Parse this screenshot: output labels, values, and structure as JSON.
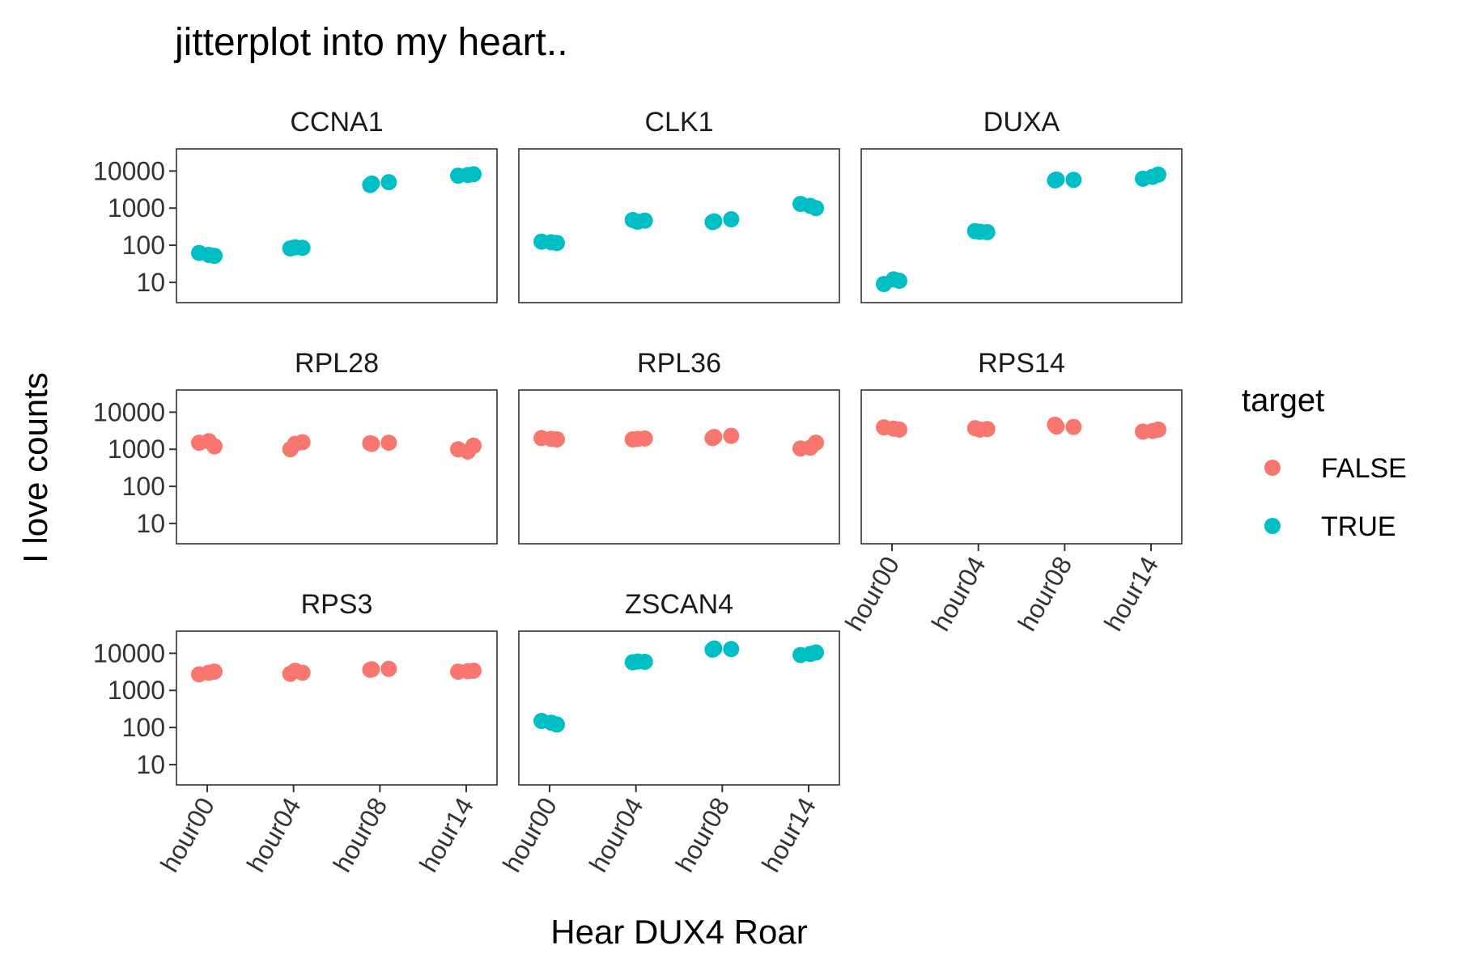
{
  "chart_data": {
    "type": "scatter",
    "title": "jitterplot  into my heart..",
    "xlabel": "Hear DUX4 Roar",
    "ylabel": "I love counts",
    "y_scale": "log10",
    "ylim": [
      7,
      16000
    ],
    "y_ticks": [
      10,
      100,
      1000,
      10000
    ],
    "y_tick_labels": [
      "10",
      "100",
      "1000",
      "10000"
    ],
    "categories": [
      "hour00",
      "hour04",
      "hour08",
      "hour14"
    ],
    "legend": {
      "title": "target",
      "position": "right",
      "entries": [
        {
          "label": "FALSE",
          "color": "#F8766D"
        },
        {
          "label": "TRUE",
          "color": "#00BFC4"
        }
      ]
    },
    "facets": [
      {
        "name": "CCNA1",
        "target": "TRUE",
        "points": [
          {
            "x": "hour00",
            "y": 62
          },
          {
            "x": "hour00",
            "y": 52
          },
          {
            "x": "hour00",
            "y": 55
          },
          {
            "x": "hour04",
            "y": 88
          },
          {
            "x": "hour04",
            "y": 82
          },
          {
            "x": "hour04",
            "y": 85
          },
          {
            "x": "hour08",
            "y": 5000
          },
          {
            "x": "hour08",
            "y": 4200
          },
          {
            "x": "hour08",
            "y": 4600
          },
          {
            "x": "hour14",
            "y": 7500
          },
          {
            "x": "hour14",
            "y": 8200
          },
          {
            "x": "hour14",
            "y": 7800
          }
        ]
      },
      {
        "name": "CLK1",
        "target": "TRUE",
        "points": [
          {
            "x": "hour00",
            "y": 125
          },
          {
            "x": "hour00",
            "y": 115
          },
          {
            "x": "hour00",
            "y": 120
          },
          {
            "x": "hour04",
            "y": 430
          },
          {
            "x": "hour04",
            "y": 480
          },
          {
            "x": "hour04",
            "y": 460
          },
          {
            "x": "hour08",
            "y": 500
          },
          {
            "x": "hour08",
            "y": 420
          },
          {
            "x": "hour08",
            "y": 440
          },
          {
            "x": "hour14",
            "y": 1300
          },
          {
            "x": "hour14",
            "y": 1000
          },
          {
            "x": "hour14",
            "y": 1150
          }
        ]
      },
      {
        "name": "DUXA",
        "target": "TRUE",
        "points": [
          {
            "x": "hour00",
            "y": 9
          },
          {
            "x": "hour00",
            "y": 11
          },
          {
            "x": "hour00",
            "y": 12
          },
          {
            "x": "hour04",
            "y": 230
          },
          {
            "x": "hour04",
            "y": 240
          },
          {
            "x": "hour04",
            "y": 225
          },
          {
            "x": "hour08",
            "y": 5800
          },
          {
            "x": "hour08",
            "y": 5600
          },
          {
            "x": "hour08",
            "y": 5900
          },
          {
            "x": "hour14",
            "y": 6200
          },
          {
            "x": "hour14",
            "y": 8000
          },
          {
            "x": "hour14",
            "y": 7000
          }
        ]
      },
      {
        "name": "RPL28",
        "target": "FALSE",
        "points": [
          {
            "x": "hour00",
            "y": 1500
          },
          {
            "x": "hour00",
            "y": 1200
          },
          {
            "x": "hour00",
            "y": 1650
          },
          {
            "x": "hour04",
            "y": 1400
          },
          {
            "x": "hour04",
            "y": 1000
          },
          {
            "x": "hour04",
            "y": 1550
          },
          {
            "x": "hour08",
            "y": 1500
          },
          {
            "x": "hour08",
            "y": 1450
          },
          {
            "x": "hour08",
            "y": 1400
          },
          {
            "x": "hour14",
            "y": 1000
          },
          {
            "x": "hour14",
            "y": 1250
          },
          {
            "x": "hour14",
            "y": 870
          }
        ]
      },
      {
        "name": "RPL36",
        "target": "FALSE",
        "points": [
          {
            "x": "hour00",
            "y": 2000
          },
          {
            "x": "hour00",
            "y": 1850
          },
          {
            "x": "hour00",
            "y": 1900
          },
          {
            "x": "hour04",
            "y": 1900
          },
          {
            "x": "hour04",
            "y": 1850
          },
          {
            "x": "hour04",
            "y": 1950
          },
          {
            "x": "hour08",
            "y": 2300
          },
          {
            "x": "hour08",
            "y": 2000
          },
          {
            "x": "hour08",
            "y": 2150
          },
          {
            "x": "hour14",
            "y": 1050
          },
          {
            "x": "hour14",
            "y": 1500
          },
          {
            "x": "hour14",
            "y": 1100
          }
        ]
      },
      {
        "name": "RPS14",
        "target": "FALSE",
        "points": [
          {
            "x": "hour00",
            "y": 3900
          },
          {
            "x": "hour00",
            "y": 3400
          },
          {
            "x": "hour00",
            "y": 3600
          },
          {
            "x": "hour04",
            "y": 3400
          },
          {
            "x": "hour04",
            "y": 3700
          },
          {
            "x": "hour04",
            "y": 3500
          },
          {
            "x": "hour08",
            "y": 4000
          },
          {
            "x": "hour08",
            "y": 4600
          },
          {
            "x": "hour08",
            "y": 4100
          },
          {
            "x": "hour14",
            "y": 3000
          },
          {
            "x": "hour14",
            "y": 3400
          },
          {
            "x": "hour14",
            "y": 3100
          }
        ]
      },
      {
        "name": "RPS3",
        "target": "FALSE",
        "points": [
          {
            "x": "hour00",
            "y": 2700
          },
          {
            "x": "hour00",
            "y": 3200
          },
          {
            "x": "hour00",
            "y": 3000
          },
          {
            "x": "hour04",
            "y": 3400
          },
          {
            "x": "hour04",
            "y": 2800
          },
          {
            "x": "hour04",
            "y": 3000
          },
          {
            "x": "hour08",
            "y": 3800
          },
          {
            "x": "hour08",
            "y": 3600
          },
          {
            "x": "hour08",
            "y": 3700
          },
          {
            "x": "hour14",
            "y": 3200
          },
          {
            "x": "hour14",
            "y": 3400
          },
          {
            "x": "hour14",
            "y": 3300
          }
        ]
      },
      {
        "name": "ZSCAN4",
        "target": "TRUE",
        "points": [
          {
            "x": "hour00",
            "y": 150
          },
          {
            "x": "hour00",
            "y": 120
          },
          {
            "x": "hour00",
            "y": 135
          },
          {
            "x": "hour04",
            "y": 6000
          },
          {
            "x": "hour04",
            "y": 5700
          },
          {
            "x": "hour04",
            "y": 5900
          },
          {
            "x": "hour08",
            "y": 13000
          },
          {
            "x": "hour08",
            "y": 12500
          },
          {
            "x": "hour08",
            "y": 13500
          },
          {
            "x": "hour14",
            "y": 9000
          },
          {
            "x": "hour14",
            "y": 10500
          },
          {
            "x": "hour14",
            "y": 9600
          }
        ]
      }
    ]
  }
}
